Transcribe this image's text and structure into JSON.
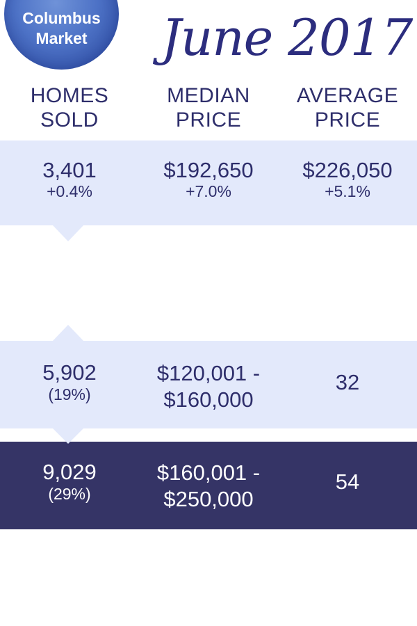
{
  "badge": {
    "line1": "Columbus",
    "line2": "Market"
  },
  "title": "June 2017",
  "headers": [
    {
      "line1": "HOMES",
      "line2": "SOLD"
    },
    {
      "line1": "MEDIAN",
      "line2": "PRICE"
    },
    {
      "line1": "AVERAGE",
      "line2": "PRICE"
    }
  ],
  "summary": {
    "homes_sold": "3,401",
    "homes_sold_change": "+0.4%",
    "median_price": "$192,650",
    "median_change": "+7.0%",
    "average_price": "$226,050",
    "average_change": "+5.1%"
  },
  "rows": [
    {
      "count": "5,902",
      "share": "(19%)",
      "range_low": "$120,001 -",
      "range_high": "$160,000",
      "value": "32"
    },
    {
      "count": "9,029",
      "share": "(29%)",
      "range_low": "$160,001 -",
      "range_high": "$250,000",
      "value": "54"
    }
  ],
  "colors": {
    "band_light": "#e3e9fb",
    "band_dark": "#353466",
    "text": "#2e2e6b",
    "badge": "#4d72c6"
  }
}
